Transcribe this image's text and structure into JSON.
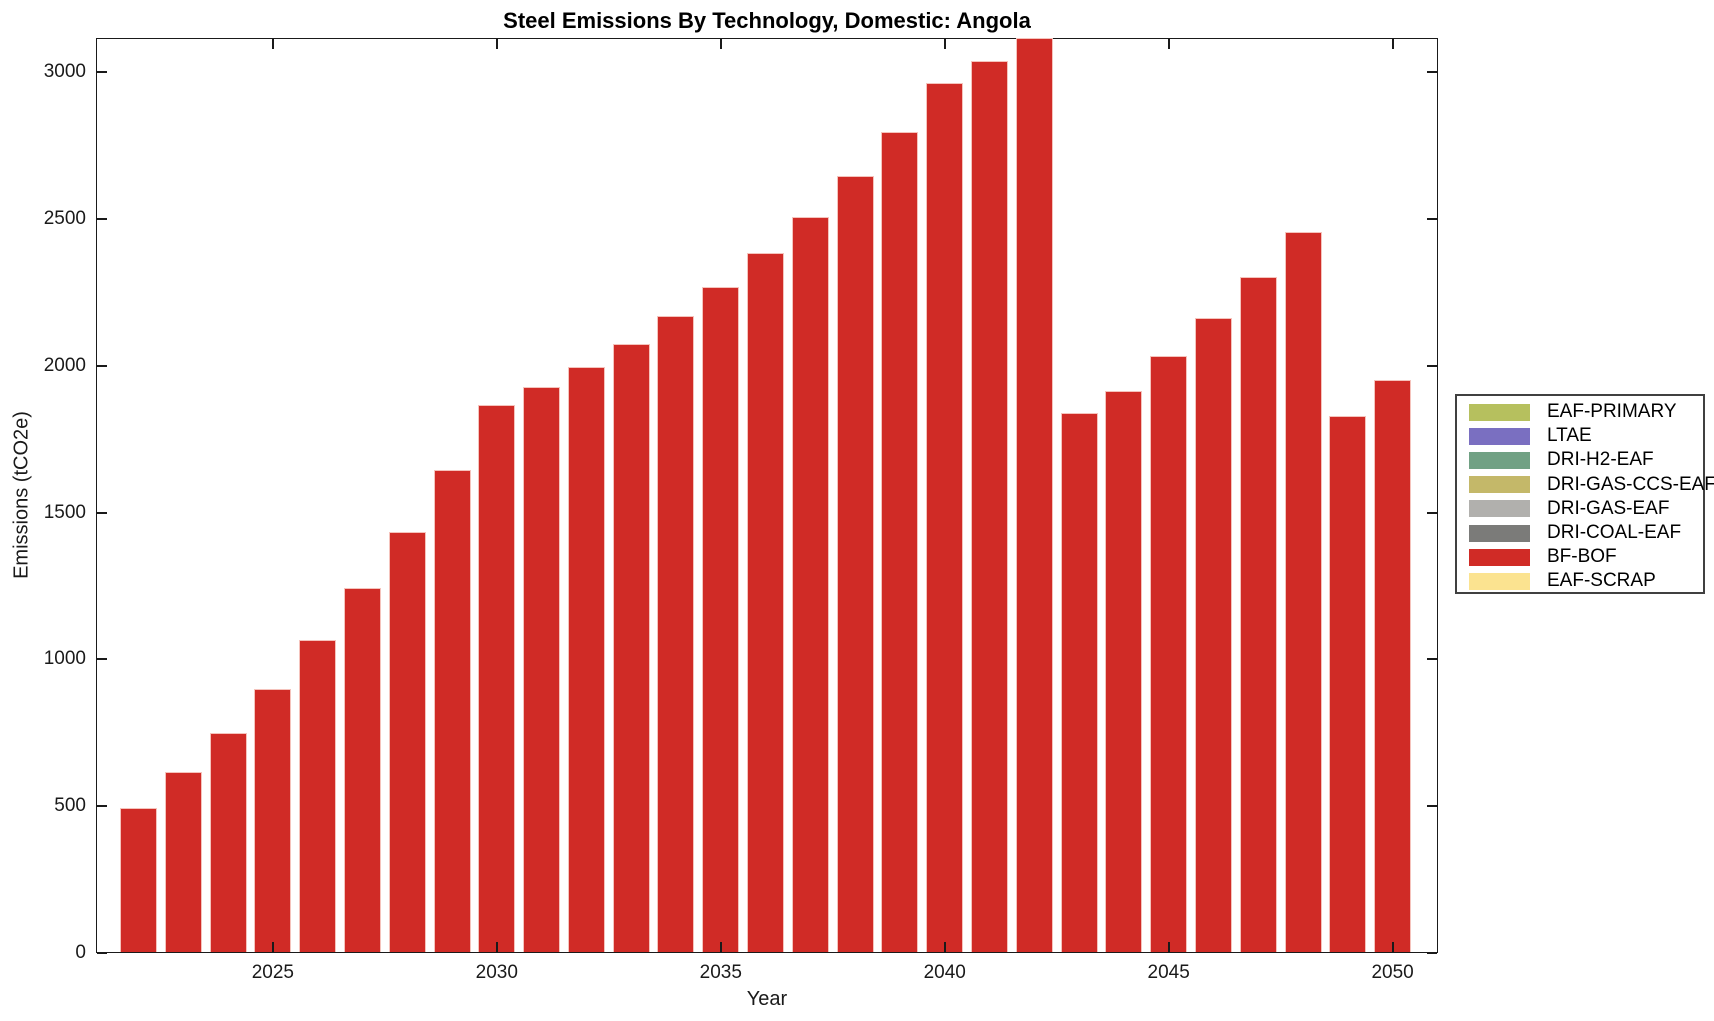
{
  "chart_data": {
    "type": "bar",
    "title": "Steel Emissions By Technology, Domestic: Angola",
    "xlabel": "Year",
    "ylabel": "Emissions (tCO2e)",
    "x": [
      2022,
      2023,
      2024,
      2025,
      2026,
      2027,
      2028,
      2029,
      2030,
      2031,
      2032,
      2033,
      2034,
      2035,
      2036,
      2037,
      2038,
      2039,
      2040,
      2041,
      2042,
      2043,
      2044,
      2045,
      2046,
      2047,
      2048,
      2049,
      2050
    ],
    "series": [
      {
        "name": "BF-BOF",
        "color": "#d02b26",
        "values": [
          494,
          616,
          749,
          899,
          1066,
          1243,
          1434,
          1645,
          1866,
          1928,
          1996,
          2074,
          2170,
          2268,
          2384,
          2507,
          2646,
          2796,
          2963,
          3038,
          3117,
          1839,
          1914,
          2033,
          2163,
          2302,
          2456,
          1829,
          1952
        ]
      }
    ],
    "xticks": [
      "2025",
      "2030",
      "2035",
      "2040",
      "2045",
      "2050"
    ],
    "xtick_years": [
      2025,
      2030,
      2035,
      2040,
      2045,
      2050
    ],
    "yticks": [
      0,
      500,
      1000,
      1500,
      2000,
      2500,
      3000
    ],
    "ylim": [
      0,
      3117
    ],
    "grid": false,
    "legend_position": "right-outside",
    "legend_entries": [
      {
        "label": "EAF-PRIMARY",
        "color": "#b6c05e"
      },
      {
        "label": "LTAE",
        "color": "#7a6fc1"
      },
      {
        "label": "DRI-H2-EAF",
        "color": "#71a184"
      },
      {
        "label": "DRI-GAS-CCS-EAF",
        "color": "#c4b869"
      },
      {
        "label": "DRI-GAS-EAF",
        "color": "#b1b0ad"
      },
      {
        "label": "DRI-COAL-EAF",
        "color": "#7b7b79"
      },
      {
        "label": "BF-BOF",
        "color": "#d02b26"
      },
      {
        "label": "EAF-SCRAP",
        "color": "#fbe390"
      }
    ]
  }
}
